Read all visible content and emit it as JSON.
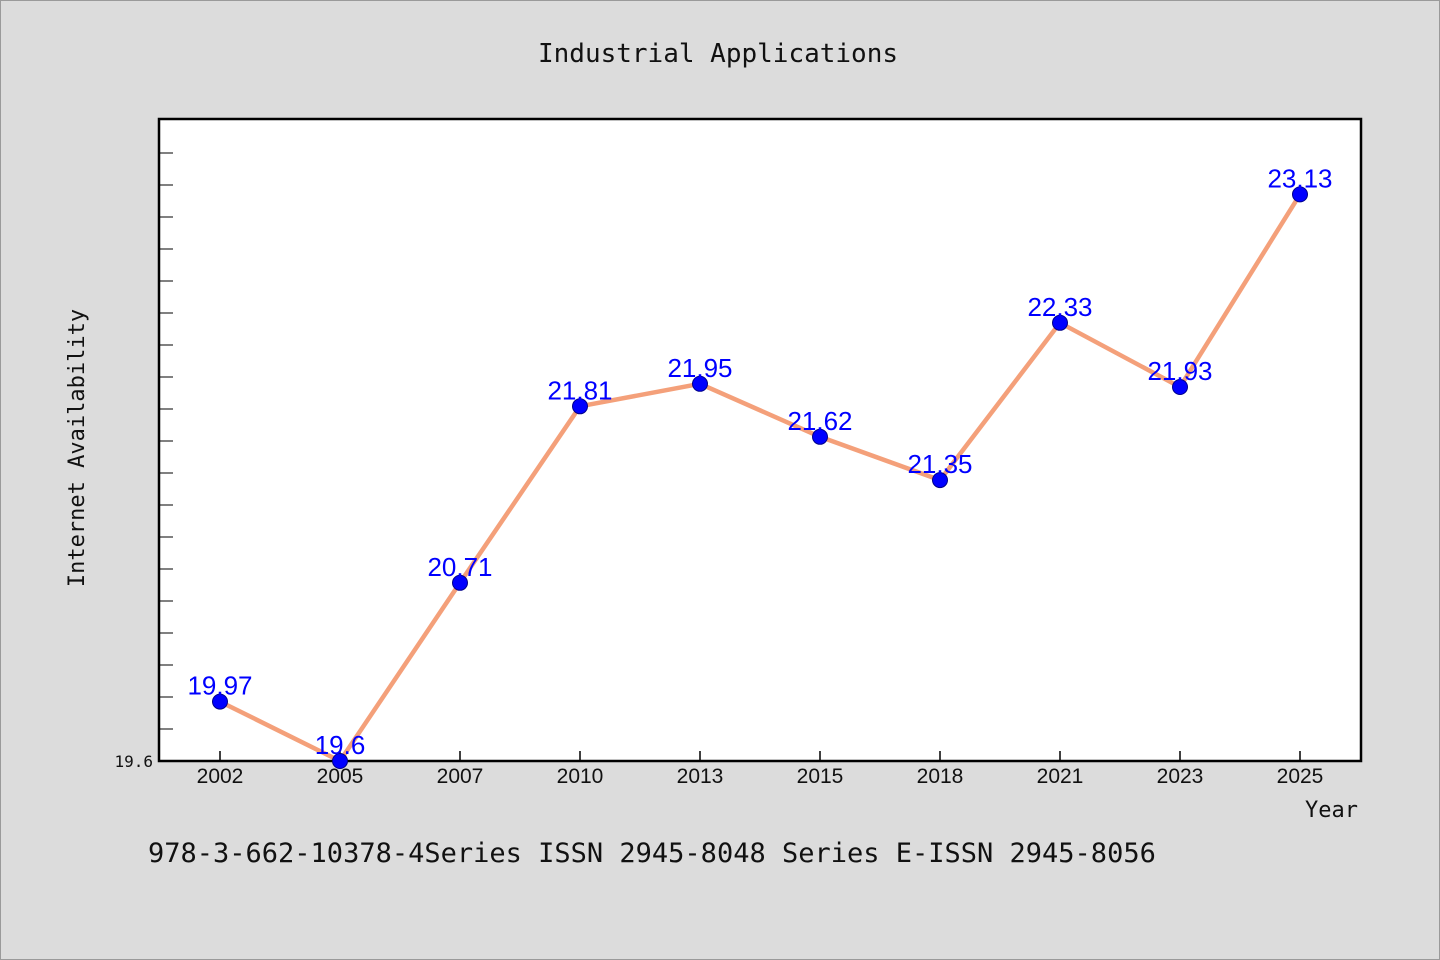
{
  "chart_data": {
    "type": "line",
    "title": "Industrial Applications",
    "xlabel": "Year",
    "ylabel": "Internet Availability",
    "categories": [
      "2002",
      "2005",
      "2007",
      "2010",
      "2013",
      "2015",
      "2018",
      "2021",
      "2023",
      "2025"
    ],
    "series": [
      {
        "values": [
          19.97,
          19.6,
          20.71,
          21.81,
          21.95,
          21.62,
          21.35,
          22.33,
          21.93,
          23.13
        ]
      }
    ],
    "data_labels": [
      "19.97",
      "19.6",
      "20.71",
      "21.81",
      "21.95",
      "21.62",
      "21.35",
      "22.33",
      "21.93",
      "23.13"
    ],
    "y_min_label": "19.6",
    "ylim": [
      19.6,
      23.6
    ],
    "grid": false,
    "line_color": "#f4a07a",
    "marker_color": "#0000ff",
    "label_color": "#0000ff",
    "background_color": "#dcdcdc",
    "plot_background": "#ffffff"
  },
  "footer": {
    "text": "978-3-662-10378-4Series ISSN 2945-8048 Series E-ISSN 2945-8056"
  }
}
